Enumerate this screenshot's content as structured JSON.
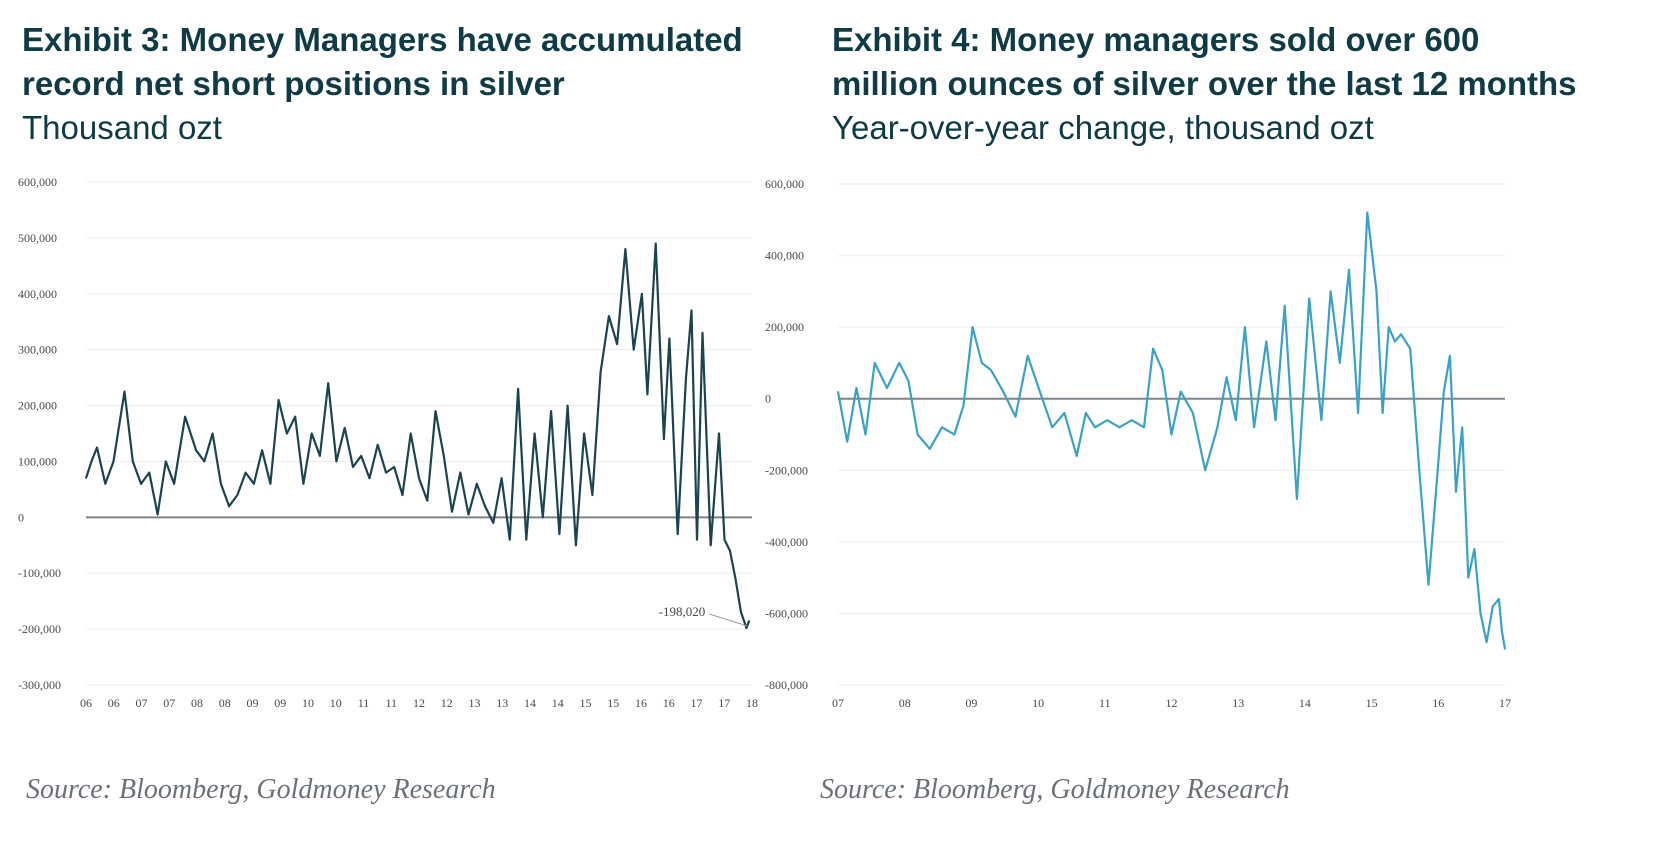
{
  "chart_data": [
    {
      "type": "line",
      "title": "Exhibit 3: Money Managers have accumulated record net short positions in silver",
      "subtitle": "Thousand ozt",
      "source": "Source: Bloomberg, Goldmoney Research",
      "xlabel": "",
      "ylabel": "",
      "ylim": [
        -300000,
        600000
      ],
      "yticks": [
        600000,
        500000,
        400000,
        300000,
        200000,
        100000,
        0,
        -100000,
        -200000,
        -300000
      ],
      "ytick_labels": [
        "600,000",
        "500,000",
        "400,000",
        "300,000",
        "200,000",
        "100,000",
        "0",
        "-100,000",
        "-200,000",
        "-300,000"
      ],
      "xtick_labels": [
        "06",
        "06",
        "07",
        "07",
        "08",
        "08",
        "09",
        "09",
        "10",
        "10",
        "11",
        "11",
        "12",
        "12",
        "13",
        "13",
        "14",
        "14",
        "15",
        "15",
        "16",
        "16",
        "17",
        "17",
        "18"
      ],
      "xlim": [
        2006.0,
        2018.1
      ],
      "grid": true,
      "color": "#1c4350",
      "annotation": {
        "text": "-198,020",
        "x": 2018.05,
        "y": -198020
      },
      "series": [
        {
          "x": [
            2006.0,
            2006.1,
            2006.2,
            2006.35,
            2006.5,
            2006.7,
            2006.85,
            2007.0,
            2007.15,
            2007.3,
            2007.45,
            2007.6,
            2007.8,
            2008.0,
            2008.15,
            2008.3,
            2008.45,
            2008.6,
            2008.75,
            2008.9,
            2009.05,
            2009.2,
            2009.35,
            2009.5,
            2009.65,
            2009.8,
            2009.95,
            2010.1,
            2010.25,
            2010.4,
            2010.55,
            2010.7,
            2010.85,
            2011.0,
            2011.15,
            2011.3,
            2011.45,
            2011.6,
            2011.75,
            2011.9,
            2012.05,
            2012.2,
            2012.35,
            2012.5,
            2012.65,
            2012.8,
            2012.95,
            2013.1,
            2013.25,
            2013.4,
            2013.55,
            2013.7,
            2013.85,
            2014.0,
            2014.15,
            2014.3,
            2014.45,
            2014.6,
            2014.75,
            2014.9,
            2015.05,
            2015.2,
            2015.35,
            2015.5,
            2015.65,
            2015.8,
            2015.95,
            2016.1,
            2016.2,
            2016.35,
            2016.5,
            2016.6,
            2016.75,
            2016.9,
            2017.0,
            2017.1,
            2017.2,
            2017.35,
            2017.5,
            2017.6,
            2017.7,
            2017.8,
            2017.9,
            2018.0,
            2018.05
          ],
          "y": [
            70000,
            100000,
            125000,
            60000,
            100000,
            225000,
            100000,
            60000,
            80000,
            5000,
            100000,
            60000,
            180000,
            120000,
            100000,
            150000,
            60000,
            20000,
            40000,
            80000,
            60000,
            120000,
            60000,
            210000,
            150000,
            180000,
            60000,
            150000,
            110000,
            240000,
            100000,
            160000,
            90000,
            110000,
            70000,
            130000,
            80000,
            90000,
            40000,
            150000,
            70000,
            30000,
            190000,
            110000,
            10000,
            80000,
            5000,
            60000,
            20000,
            -10000,
            70000,
            -40000,
            230000,
            -40000,
            150000,
            0,
            190000,
            -30000,
            200000,
            -50000,
            150000,
            40000,
            260000,
            360000,
            310000,
            480000,
            300000,
            400000,
            220000,
            490000,
            140000,
            320000,
            -30000,
            250000,
            370000,
            -40000,
            330000,
            -50000,
            150000,
            -40000,
            -60000,
            -110000,
            -170000,
            -198020,
            -185000
          ]
        }
      ]
    },
    {
      "type": "line",
      "title": "Exhibit 4: Money managers sold over 600 million ounces of silver over the last 12 months",
      "subtitle": "Year-over-year change, thousand ozt",
      "source": "Source: Bloomberg, Goldmoney Research",
      "xlabel": "",
      "ylabel": "",
      "ylim": [
        -800000,
        600000
      ],
      "yticks": [
        600000,
        400000,
        200000,
        0,
        -200000,
        -400000,
        -600000,
        -800000
      ],
      "ytick_labels": [
        "600,000",
        "400,000",
        "200,000",
        "0",
        "-200,000",
        "-400,000",
        "-600,000",
        "-800,000"
      ],
      "xtick_labels": [
        "07",
        "08",
        "09",
        "10",
        "11",
        "12",
        "13",
        "14",
        "15",
        "16",
        "17"
      ],
      "xlim": [
        2007.0,
        2017.9
      ],
      "grid": true,
      "color": "#3aa1c7",
      "series": [
        {
          "x": [
            2007.0,
            2007.15,
            2007.3,
            2007.45,
            2007.6,
            2007.8,
            2008.0,
            2008.15,
            2008.3,
            2008.5,
            2008.7,
            2008.9,
            2009.05,
            2009.2,
            2009.35,
            2009.5,
            2009.7,
            2009.9,
            2010.1,
            2010.3,
            2010.5,
            2010.7,
            2010.9,
            2011.05,
            2011.2,
            2011.4,
            2011.6,
            2011.8,
            2012.0,
            2012.15,
            2012.3,
            2012.45,
            2012.6,
            2012.8,
            2013.0,
            2013.2,
            2013.35,
            2013.5,
            2013.65,
            2013.8,
            2014.0,
            2014.15,
            2014.3,
            2014.5,
            2014.7,
            2014.9,
            2015.05,
            2015.2,
            2015.35,
            2015.5,
            2015.65,
            2015.8,
            2015.9,
            2016.0,
            2016.1,
            2016.2,
            2016.35,
            2016.5,
            2016.65,
            2016.8,
            2016.9,
            2017.0,
            2017.1,
            2017.2,
            2017.3,
            2017.4,
            2017.5,
            2017.6,
            2017.7,
            2017.8,
            2017.85,
            2017.9
          ],
          "y": [
            20000,
            -120000,
            30000,
            -100000,
            100000,
            30000,
            100000,
            50000,
            -100000,
            -140000,
            -80000,
            -100000,
            -20000,
            200000,
            100000,
            80000,
            20000,
            -50000,
            120000,
            20000,
            -80000,
            -40000,
            -160000,
            -40000,
            -80000,
            -60000,
            -80000,
            -60000,
            -80000,
            140000,
            80000,
            -100000,
            20000,
            -40000,
            -200000,
            -80000,
            60000,
            -60000,
            200000,
            -80000,
            160000,
            -60000,
            260000,
            -280000,
            280000,
            -60000,
            300000,
            100000,
            360000,
            -40000,
            520000,
            300000,
            -40000,
            200000,
            160000,
            180000,
            140000,
            -200000,
            -520000,
            -200000,
            20000,
            120000,
            -260000,
            -80000,
            -500000,
            -420000,
            -600000,
            -680000,
            -580000,
            -560000,
            -650000,
            -700000
          ]
        }
      ]
    }
  ]
}
